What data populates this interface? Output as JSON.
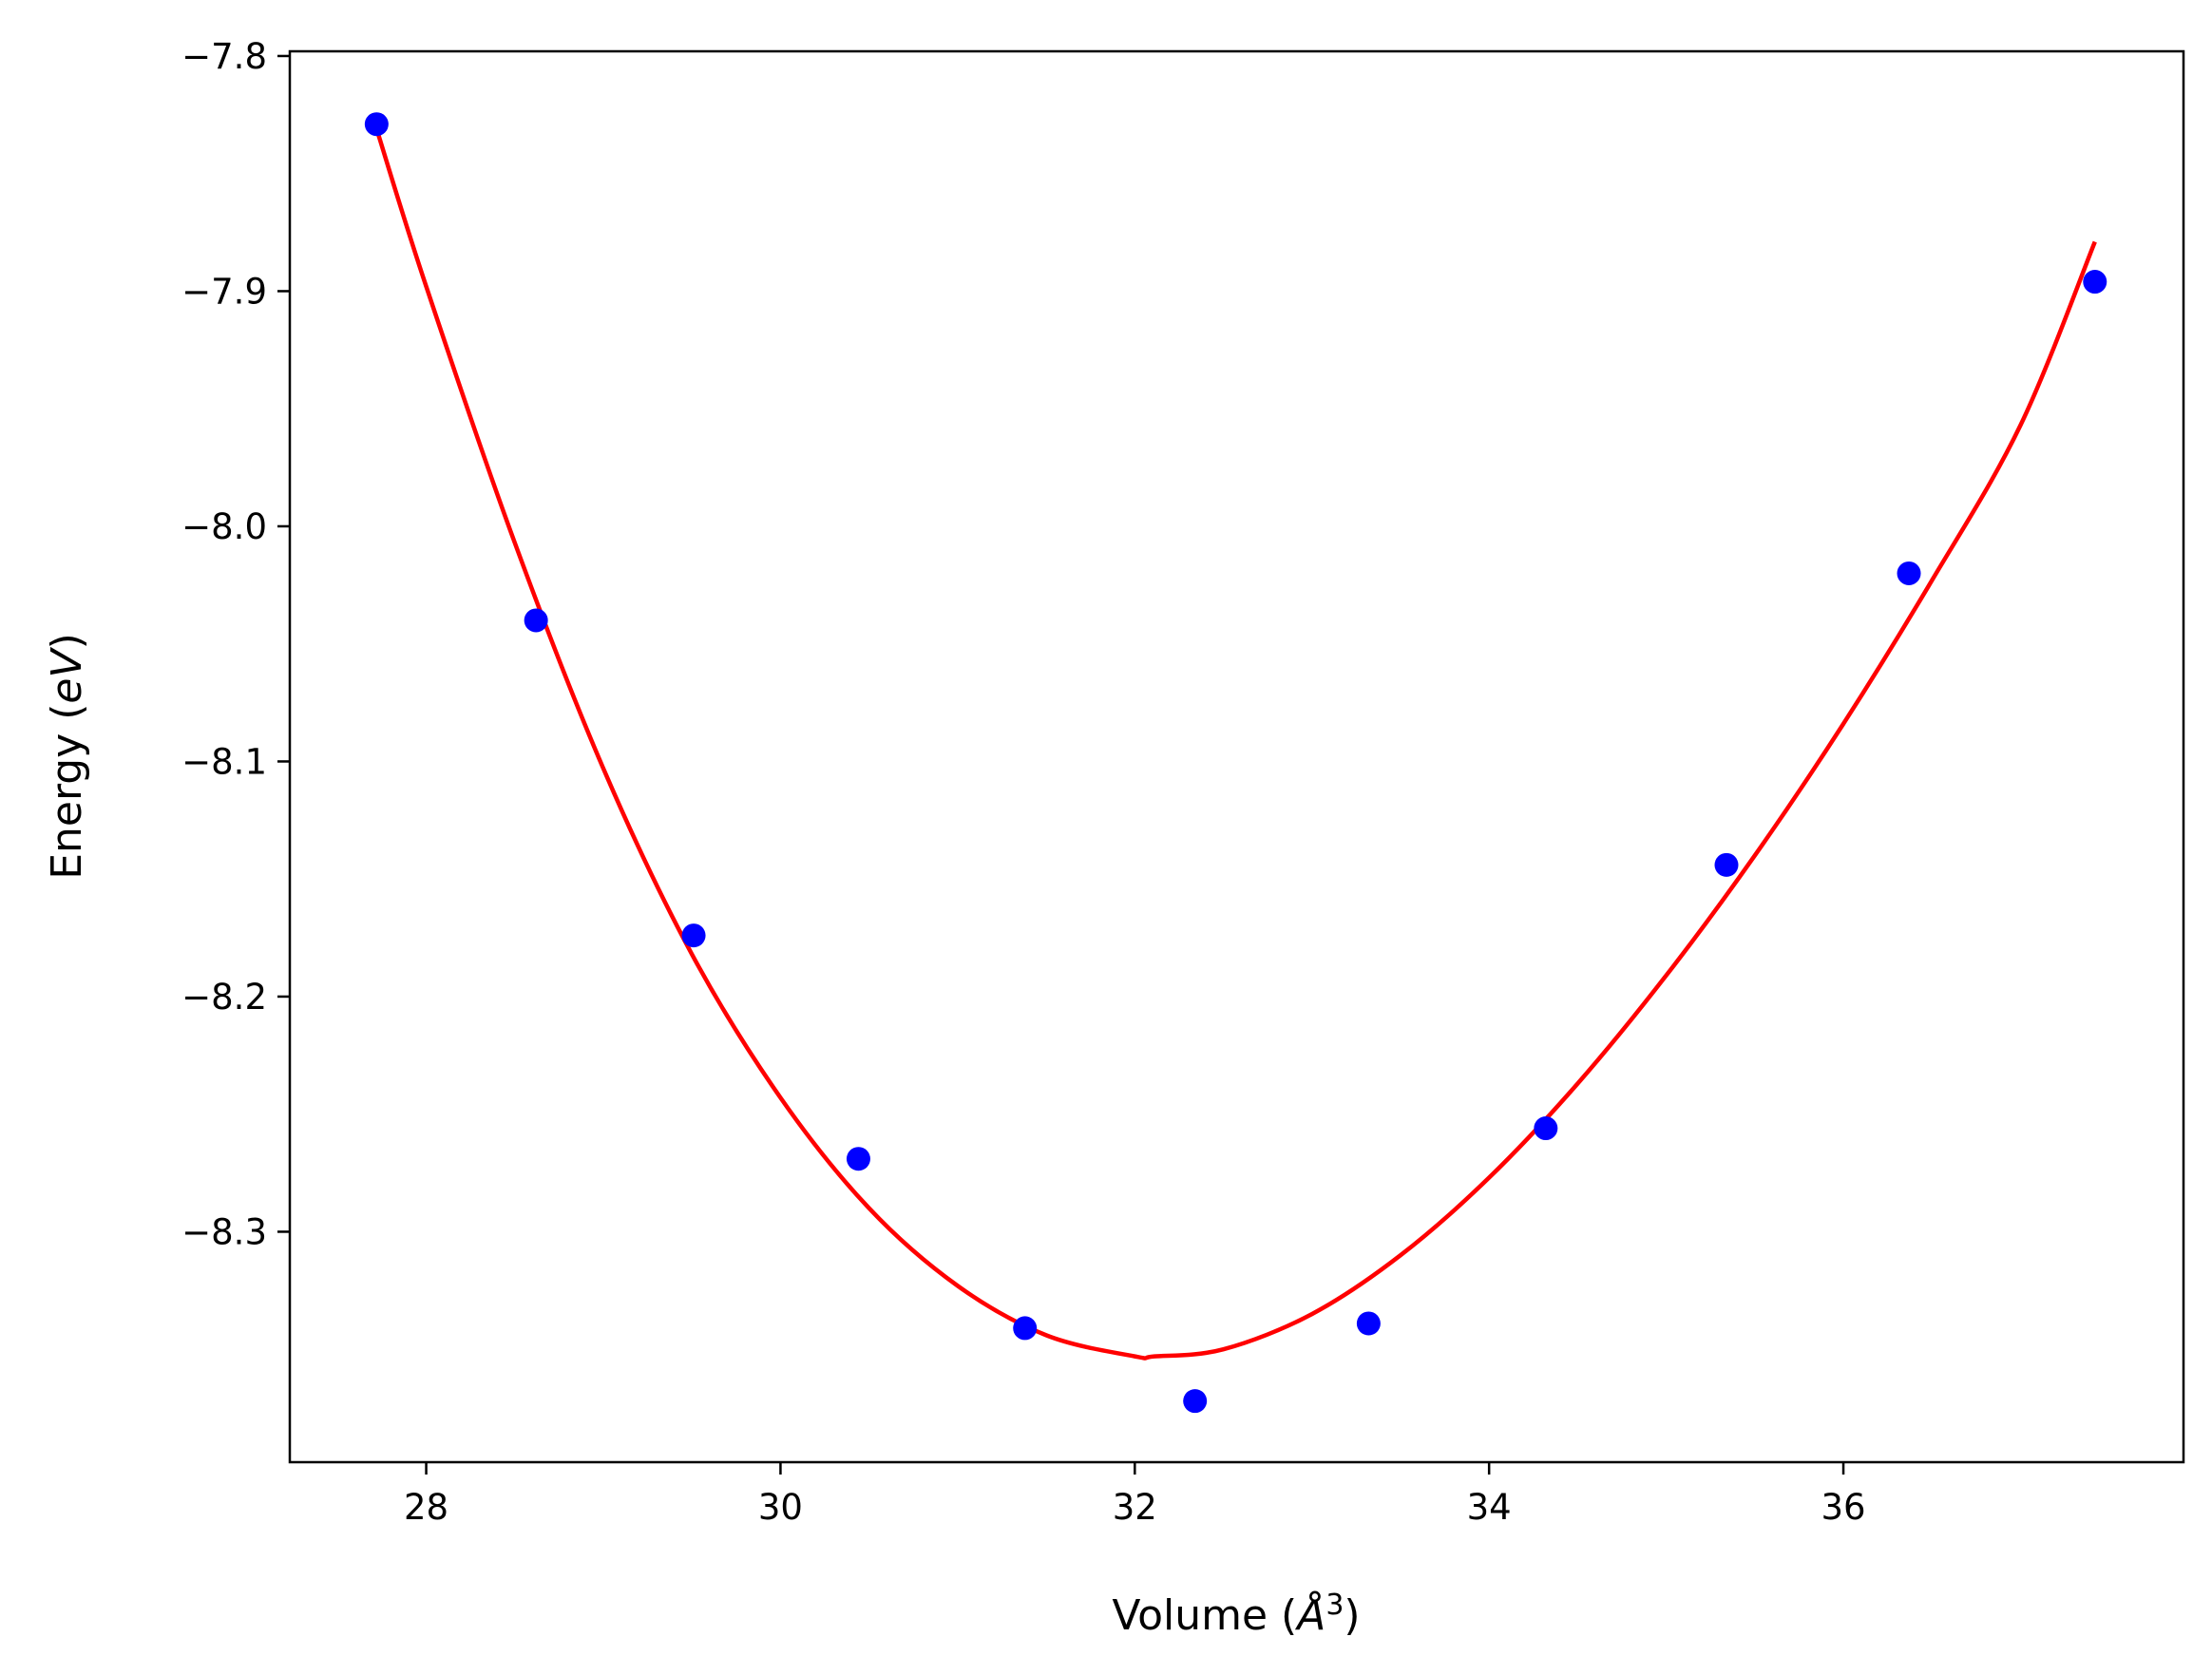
{
  "chart_data": {
    "type": "scatter",
    "title": "",
    "xlabel": "Volume (Å³)",
    "xlabel_parts": {
      "prefix": "Volume (",
      "italic": "Å",
      "sup": "3",
      "suffix": ")"
    },
    "ylabel": "Energy (eV)",
    "ylabel_parts": {
      "prefix": "Energy (",
      "italic": "eV",
      "suffix": ")"
    },
    "xlim": [
      27.23,
      37.92
    ],
    "ylim": [
      -8.398,
      -7.798
    ],
    "xticks": [
      28,
      30,
      32,
      34,
      36
    ],
    "xtick_labels": [
      "28",
      "30",
      "32",
      "34",
      "36"
    ],
    "yticks": [
      -7.8,
      -7.9,
      -8.0,
      -8.1,
      -8.2,
      -8.3
    ],
    "ytick_labels": [
      "−7.8",
      "−7.9",
      "−8.0",
      "−8.1",
      "−8.2",
      "−8.3"
    ],
    "grid": false,
    "legend": "none",
    "series": [
      {
        "kind": "points",
        "color": "#0000ff",
        "x": [
          27.72,
          28.62,
          29.51,
          30.44,
          31.38,
          32.34,
          33.32,
          34.32,
          35.34,
          36.37,
          37.42
        ],
        "y": [
          -7.829,
          -8.04,
          -8.174,
          -8.269,
          -8.341,
          -8.372,
          -8.339,
          -8.256,
          -8.144,
          -8.02,
          -7.896
        ]
      },
      {
        "kind": "fit-curve",
        "color": "#ff0000",
        "x": [
          27.72,
          28.0,
          28.5,
          29.0,
          29.5,
          30.0,
          30.5,
          31.0,
          31.5,
          32.0,
          32.11,
          32.5,
          33.0,
          33.5,
          34.0,
          34.5,
          35.0,
          35.5,
          36.0,
          36.5,
          37.0,
          37.42
        ],
        "y": [
          -7.831,
          -7.898,
          -8.007,
          -8.103,
          -8.182,
          -8.243,
          -8.29,
          -8.323,
          -8.344,
          -8.353,
          -8.353,
          -8.35,
          -8.335,
          -8.31,
          -8.277,
          -8.237,
          -8.191,
          -8.14,
          -8.084,
          -8.023,
          -7.957,
          -7.879
        ]
      }
    ]
  }
}
